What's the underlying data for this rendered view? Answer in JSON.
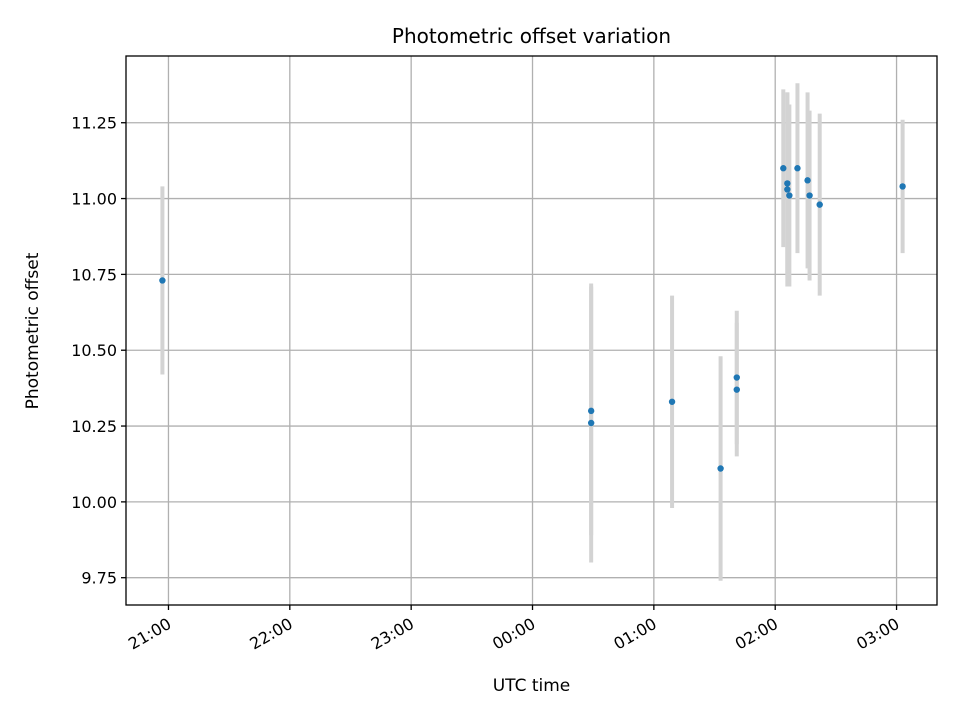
{
  "chart_data": {
    "type": "scatter",
    "title": "Photometric offset variation",
    "xlabel": "UTC time",
    "ylabel": "Photometric offset",
    "x_axis": {
      "type": "time",
      "range": [
        "20:39",
        "03:20"
      ],
      "ticks": [
        "21:00",
        "22:00",
        "23:00",
        "00:00",
        "01:00",
        "02:00",
        "03:00"
      ]
    },
    "y_axis": {
      "range": [
        9.66,
        11.47
      ],
      "ticks": [
        "9.75",
        "10.00",
        "10.25",
        "10.50",
        "10.75",
        "11.00",
        "11.25"
      ]
    },
    "grid": true,
    "colors": {
      "points": "#1f77b4",
      "error_bars": "#d3d3d3",
      "grid": "#b0b0b0"
    },
    "points": [
      {
        "time": "20:57",
        "y": 10.73,
        "err": 0.31
      },
      {
        "time": "00:29",
        "y": 10.26,
        "err": 0.46
      },
      {
        "time": "00:29",
        "y": 10.3,
        "err": 0.41
      },
      {
        "time": "01:09",
        "y": 10.33,
        "err": 0.35
      },
      {
        "time": "01:33",
        "y": 10.11,
        "err": 0.37
      },
      {
        "time": "01:41",
        "y": 10.37,
        "err": 0.22
      },
      {
        "time": "01:41",
        "y": 10.41,
        "err": 0.22
      },
      {
        "time": "02:04",
        "y": 11.1,
        "err": 0.26
      },
      {
        "time": "02:06",
        "y": 11.05,
        "err": 0.3
      },
      {
        "time": "02:06",
        "y": 11.03,
        "err": 0.32
      },
      {
        "time": "02:07",
        "y": 11.01,
        "err": 0.3
      },
      {
        "time": "02:11",
        "y": 11.1,
        "err": 0.28
      },
      {
        "time": "02:16",
        "y": 11.06,
        "err": 0.29
      },
      {
        "time": "02:17",
        "y": 11.01,
        "err": 0.28
      },
      {
        "time": "02:22",
        "y": 10.98,
        "err": 0.3
      },
      {
        "time": "03:03",
        "y": 11.04,
        "err": 0.22
      }
    ]
  }
}
